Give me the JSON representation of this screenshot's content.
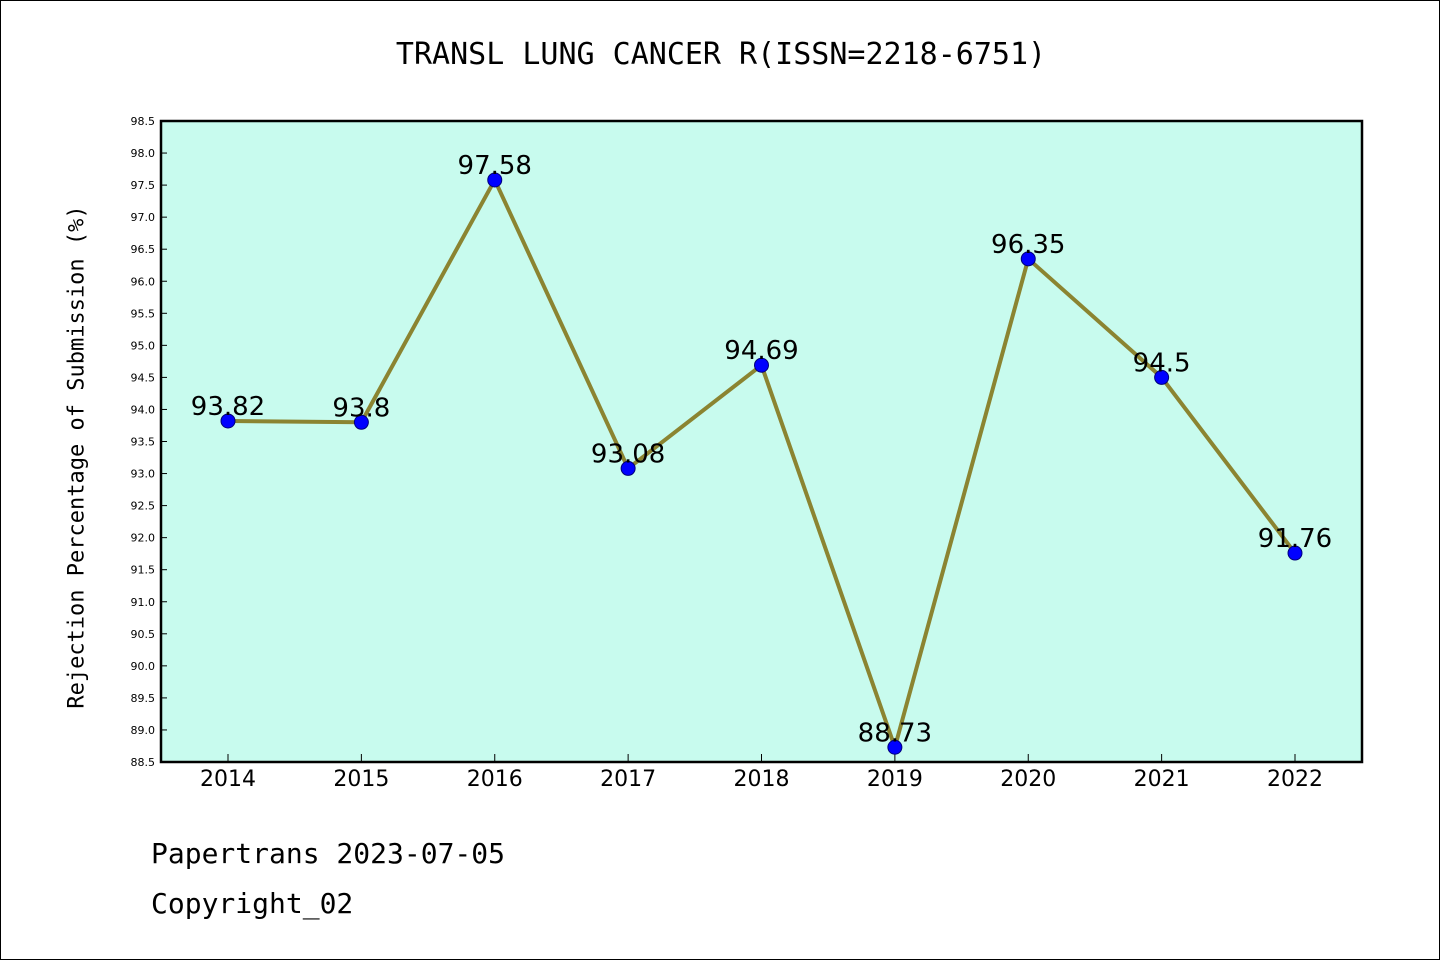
{
  "page": {
    "title": "TRANSL LUNG CANCER R(ISSN=2218-6751)",
    "footer_date": "Papertrans 2023-07-05",
    "footer_copyright": "Copyright_02"
  },
  "chart_data": {
    "type": "line",
    "title": "TRANSL LUNG CANCER R(ISSN=2218-6751)",
    "xlabel": "",
    "ylabel": "Rejection Percentage of Submission (%)",
    "ylim": [
      88.5,
      98.5
    ],
    "ytick_step": 0.5,
    "categories": [
      "2014",
      "2015",
      "2016",
      "2017",
      "2018",
      "2019",
      "2020",
      "2021",
      "2022"
    ],
    "series": [
      {
        "values": [
          93.82,
          93.8,
          97.58,
          93.08,
          94.69,
          88.73,
          96.35,
          94.5,
          91.76
        ],
        "labels": [
          "93.82",
          "93.8",
          "97.58",
          "93.08",
          "94.69",
          "88.73",
          "96.35",
          "94.5",
          "91.76"
        ]
      }
    ],
    "grid": false,
    "legend": "none",
    "colors": {
      "plot_background": "#c8fbee",
      "line": "#8b8431",
      "marker": "#0000ff",
      "axis": "#000000"
    }
  }
}
